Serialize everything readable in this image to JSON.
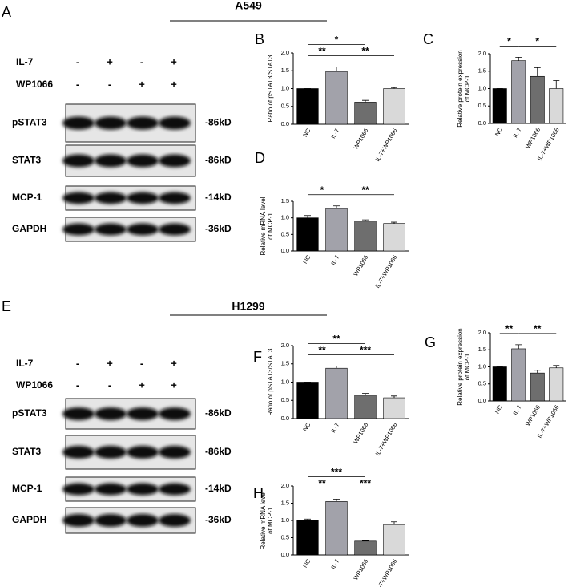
{
  "blots": [
    {
      "letter": "A",
      "cell_line": "A549",
      "treatments": [
        {
          "name": "IL-7",
          "marks": [
            "-",
            "+",
            "-",
            "+"
          ]
        },
        {
          "name": "WP1066",
          "marks": [
            "-",
            "-",
            "+",
            "+"
          ]
        }
      ],
      "bands": [
        {
          "name": "pSTAT3",
          "size": "-86kD"
        },
        {
          "name": "STAT3",
          "size": "-86kD"
        },
        {
          "name": "MCP-1",
          "size": "-14kD"
        },
        {
          "name": "GAPDH",
          "size": "-36kD"
        }
      ]
    },
    {
      "letter": "E",
      "cell_line": "H1299",
      "treatments": [
        {
          "name": "IL-7",
          "marks": [
            "-",
            "+",
            "-",
            "+"
          ]
        },
        {
          "name": "WP1066",
          "marks": [
            "-",
            "-",
            "+",
            "+"
          ]
        }
      ],
      "bands": [
        {
          "name": "pSTAT3",
          "size": "-86kD"
        },
        {
          "name": "STAT3",
          "size": "-86kD"
        },
        {
          "name": "MCP-1",
          "size": "-14kD"
        },
        {
          "name": "GAPDH",
          "size": "-36kD"
        }
      ]
    }
  ],
  "chart_data": [
    {
      "type": "bar",
      "letter": "B",
      "ylabel": [
        "Ratio of pSTAT3/STAT3"
      ],
      "categories": [
        "NC",
        "IL-7",
        "WP1066",
        "IL-7+WP1066"
      ],
      "colors": [
        "#000000",
        "#a2a2aa",
        "#6e6e6e",
        "#d9d9d9"
      ],
      "values": [
        1.0,
        1.48,
        0.62,
        1.0
      ],
      "errors": [
        0,
        0.13,
        0.05,
        0.03
      ],
      "ylim": [
        0,
        2.0
      ],
      "yticks": [
        {
          "value": 0,
          "label": "0.0"
        },
        {
          "value": 0.5,
          "label": "0.5"
        },
        {
          "value": 1,
          "label": "1.0"
        },
        {
          "value": 1.5,
          "label": "1.5"
        },
        {
          "value": 2,
          "label": "2.0"
        }
      ],
      "significance": [
        {
          "label": "**",
          "between": [
            "NC",
            "IL-7"
          ]
        },
        {
          "label": "**",
          "between": [
            "IL-7",
            "IL-7+WP1066"
          ]
        },
        {
          "label": "*",
          "between": [
            "NC",
            "WP1066"
          ]
        }
      ]
    },
    {
      "type": "bar",
      "letter": "C",
      "ylabel": [
        "Relative protein expression",
        "of MCP-1"
      ],
      "categories": [
        "NC",
        "IL-7",
        "WP1066",
        "IL-7+WP1066"
      ],
      "colors": [
        "#000000",
        "#a2a2aa",
        "#6e6e6e",
        "#d9d9d9"
      ],
      "values": [
        1.0,
        1.8,
        1.35,
        1.0
      ],
      "errors": [
        0,
        0.1,
        0.25,
        0.23
      ],
      "ylim": [
        0,
        2.0
      ],
      "yticks": [
        {
          "value": 0,
          "label": "0.0"
        },
        {
          "value": 0.5,
          "label": "0.5"
        },
        {
          "value": 1,
          "label": "1.0"
        },
        {
          "value": 1.5,
          "label": "1.5"
        },
        {
          "value": 2,
          "label": "2.0"
        }
      ],
      "significance": [
        {
          "label": "*",
          "between": [
            "NC",
            "IL-7"
          ]
        },
        {
          "label": "*",
          "between": [
            "IL-7",
            "IL-7+WP1066"
          ]
        }
      ]
    },
    {
      "type": "bar",
      "letter": "D",
      "ylabel": [
        "Relative mRNA level",
        "of MCP-1"
      ],
      "categories": [
        "NC",
        "IL-7",
        "WP1066",
        "IL-7+WP1066"
      ],
      "colors": [
        "#000000",
        "#a2a2aa",
        "#6e6e6e",
        "#d9d9d9"
      ],
      "values": [
        1.0,
        1.28,
        0.9,
        0.83
      ],
      "errors": [
        0.07,
        0.08,
        0.04,
        0.04
      ],
      "ylim": [
        0,
        1.5
      ],
      "yticks": [
        {
          "value": 0,
          "label": "0.0"
        },
        {
          "value": 0.5,
          "label": "0.5"
        },
        {
          "value": 1,
          "label": "1.0"
        },
        {
          "value": 1.5,
          "label": "1.5"
        }
      ],
      "significance": [
        {
          "label": "*",
          "between": [
            "NC",
            "IL-7"
          ]
        },
        {
          "label": "**",
          "between": [
            "IL-7",
            "IL-7+WP1066"
          ]
        }
      ]
    },
    {
      "type": "bar",
      "letter": "F",
      "ylabel": [
        "Ratio of pSTAT3/STAT3"
      ],
      "categories": [
        "NC",
        "IL-7",
        "WP1066",
        "IL-7+WP1066"
      ],
      "colors": [
        "#000000",
        "#a2a2aa",
        "#6e6e6e",
        "#d9d9d9"
      ],
      "values": [
        1.0,
        1.38,
        0.64,
        0.57
      ],
      "errors": [
        0,
        0.06,
        0.05,
        0.05
      ],
      "ylim": [
        0,
        2.0
      ],
      "yticks": [
        {
          "value": 0,
          "label": "0.0"
        },
        {
          "value": 0.5,
          "label": "0.5"
        },
        {
          "value": 1,
          "label": "1.0"
        },
        {
          "value": 1.5,
          "label": "1.5"
        },
        {
          "value": 2,
          "label": "2.0"
        }
      ],
      "significance": [
        {
          "label": "**",
          "between": [
            "NC",
            "IL-7"
          ]
        },
        {
          "label": "***",
          "between": [
            "IL-7",
            "IL-7+WP1066"
          ]
        },
        {
          "label": "**",
          "between": [
            "NC",
            "WP1066"
          ]
        }
      ]
    },
    {
      "type": "bar",
      "letter": "G",
      "ylabel": [
        "Relative protein expression",
        "of MCP-1"
      ],
      "categories": [
        "NC",
        "IL-7",
        "WP1066",
        "IL-7+WP1066"
      ],
      "colors": [
        "#000000",
        "#a2a2aa",
        "#6e6e6e",
        "#d9d9d9"
      ],
      "values": [
        1.0,
        1.53,
        0.82,
        0.97
      ],
      "errors": [
        0,
        0.12,
        0.08,
        0.07
      ],
      "ylim": [
        0,
        2.0
      ],
      "yticks": [
        {
          "value": 0,
          "label": "0.0"
        },
        {
          "value": 0.5,
          "label": "0.5"
        },
        {
          "value": 1,
          "label": "1.0"
        },
        {
          "value": 1.5,
          "label": "1.5"
        },
        {
          "value": 2,
          "label": "2.0"
        }
      ],
      "significance": [
        {
          "label": "**",
          "between": [
            "NC",
            "IL-7"
          ]
        },
        {
          "label": "**",
          "between": [
            "IL-7",
            "IL-7+WP1066"
          ]
        }
      ]
    },
    {
      "type": "bar",
      "letter": "H",
      "ylabel": [
        "Relative mRNA level",
        "of MCP-1"
      ],
      "categories": [
        "NC",
        "IL-7",
        "WP1066",
        "IL-7+WP1066"
      ],
      "colors": [
        "#000000",
        "#a2a2aa",
        "#6e6e6e",
        "#d9d9d9"
      ],
      "values": [
        1.0,
        1.55,
        0.4,
        0.88
      ],
      "errors": [
        0.04,
        0.07,
        0.01,
        0.08
      ],
      "ylim": [
        0,
        2.0
      ],
      "yticks": [
        {
          "value": 0,
          "label": "0.0"
        },
        {
          "value": 0.5,
          "label": "0.5"
        },
        {
          "value": 1,
          "label": "1.0"
        },
        {
          "value": 1.5,
          "label": "1.5"
        },
        {
          "value": 2,
          "label": "2.0"
        }
      ],
      "significance": [
        {
          "label": "**",
          "between": [
            "NC",
            "IL-7"
          ]
        },
        {
          "label": "***",
          "between": [
            "IL-7",
            "IL-7+WP1066"
          ]
        },
        {
          "label": "***",
          "between": [
            "NC",
            "WP1066"
          ]
        }
      ]
    }
  ]
}
